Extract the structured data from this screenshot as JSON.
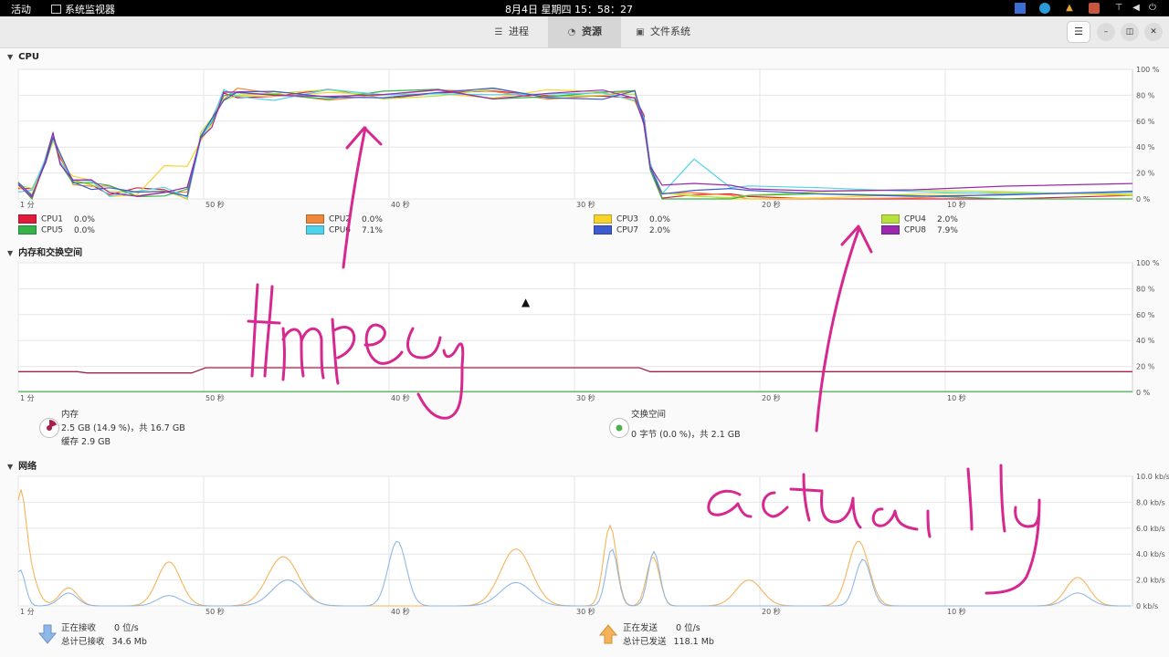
{
  "topbar": {
    "activities": "活动",
    "app_name": "系统监视器",
    "clock": "8月4日 星期四 15：58：27"
  },
  "tabs": [
    {
      "label": "进程",
      "icon": "list-icon"
    },
    {
      "label": "资源",
      "icon": "gauge-icon"
    },
    {
      "label": "文件系统",
      "icon": "drive-icon"
    }
  ],
  "cpu": {
    "title": "CPU",
    "y_ticks": [
      "100 %",
      "80 %",
      "60 %",
      "40 %",
      "20 %",
      "0 %"
    ],
    "legend": [
      {
        "label": "CPU1",
        "value": "0.0%",
        "color": "#e01b3c"
      },
      {
        "label": "CPU2",
        "value": "0.0%",
        "color": "#f0883c"
      },
      {
        "label": "CPU3",
        "value": "0.0%",
        "color": "#f6d32d"
      },
      {
        "label": "CPU4",
        "value": "2.0%",
        "color": "#b7e23d"
      },
      {
        "label": "CPU5",
        "value": "0.0%",
        "color": "#33b34a"
      },
      {
        "label": "CPU6",
        "value": "7.1%",
        "color": "#4fd2ec"
      },
      {
        "label": "CPU7",
        "value": "2.0%",
        "color": "#3e5ad1"
      },
      {
        "label": "CPU8",
        "value": "7.9%",
        "color": "#9c27b0"
      }
    ]
  },
  "x_ticks": [
    "1 分",
    "50 秒",
    "40 秒",
    "30 秒",
    "20 秒",
    "10 秒"
  ],
  "memory": {
    "title": "内存和交换空间",
    "y_ticks": [
      "100 %",
      "80 %",
      "60 %",
      "40 %",
      "20 %",
      "0 %"
    ],
    "mem_label": "内存",
    "mem_usage": "2.5 GB (14.9 %)，共 16.7 GB",
    "mem_cache": "缓存 2.9 GB",
    "mem_color": "#a3214a",
    "swap_label": "交换空间",
    "swap_usage": "0 字节 (0.0 %)，共 2.1 GB",
    "swap_color": "#4caf50"
  },
  "network": {
    "title": "网络",
    "y_ticks": [
      "10.0 kb/s",
      "8.0 kb/s",
      "6.0 kb/s",
      "4.0 kb/s",
      "2.0 kb/s",
      "0 kb/s"
    ],
    "recv_label": "正在接收",
    "recv_rate": "0 位/s",
    "recv_total_label": "总计已接收",
    "recv_total": "34.6 Mb",
    "recv_color": "#8fb8e8",
    "send_label": "正在发送",
    "send_rate": "0 位/s",
    "send_total_label": "总计已发送",
    "send_total": "118.1 Mb",
    "send_color": "#f5b45c"
  },
  "annotation_text": "ffmpeg actually",
  "annotation_color": "#d6288f"
}
